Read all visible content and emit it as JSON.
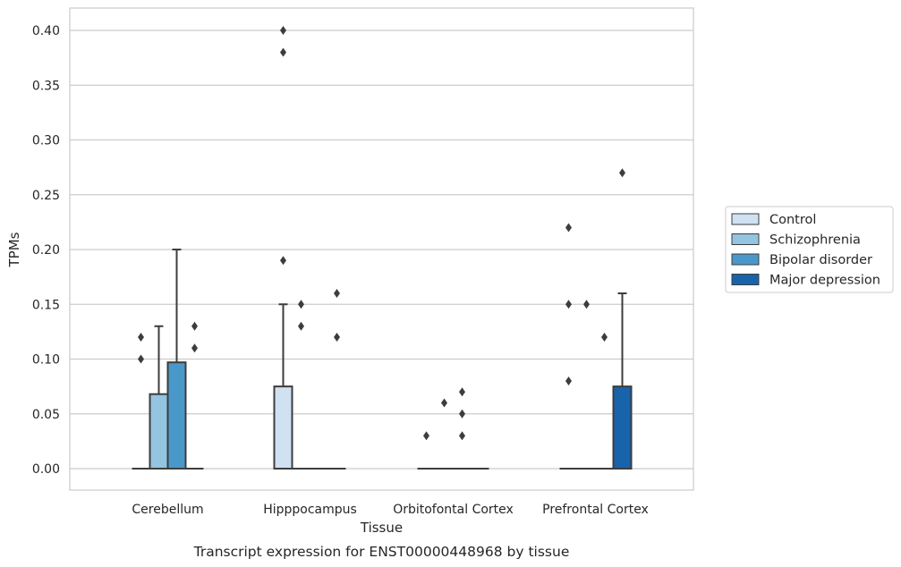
{
  "chart_data": {
    "type": "box",
    "title": "",
    "caption": "Transcript expression for ENST00000448968 by tissue",
    "xlabel": "Tissue",
    "ylabel": "TPMs",
    "ylim": [
      -0.02,
      0.42
    ],
    "yticks": [
      "0.00",
      "0.05",
      "0.10",
      "0.15",
      "0.20",
      "0.25",
      "0.30",
      "0.35",
      "0.40"
    ],
    "grid": true,
    "legend_position": "outside-right",
    "categories": [
      "Cerebellum",
      "Hipppocampus",
      "Orbitofontal Cortex",
      "Prefrontal Cortex"
    ],
    "series": [
      {
        "name": "Control",
        "color": "#d0e1f2",
        "boxes": [
          {
            "q1": 0,
            "median": 0,
            "q3": 0,
            "whisker_low": 0,
            "whisker_high": 0,
            "outliers": [
              0.1,
              0.12
            ]
          },
          {
            "q1": 0,
            "median": 0,
            "q3": 0.075,
            "whisker_low": 0,
            "whisker_high": 0.15,
            "outliers": [
              0.19,
              0.38,
              0.4
            ]
          },
          {
            "q1": 0,
            "median": 0,
            "q3": 0,
            "whisker_low": 0,
            "whisker_high": 0,
            "outliers": [
              0.03
            ]
          },
          {
            "q1": 0,
            "median": 0,
            "q3": 0,
            "whisker_low": 0,
            "whisker_high": 0,
            "outliers": [
              0.08,
              0.15,
              0.22
            ]
          }
        ]
      },
      {
        "name": "Schizophrenia",
        "color": "#94c4df",
        "boxes": [
          {
            "q1": 0,
            "median": 0,
            "q3": 0.068,
            "whisker_low": 0,
            "whisker_high": 0.13,
            "outliers": []
          },
          {
            "q1": 0,
            "median": 0,
            "q3": 0,
            "whisker_low": 0,
            "whisker_high": 0,
            "outliers": [
              0.13,
              0.15
            ]
          },
          {
            "q1": 0,
            "median": 0,
            "q3": 0,
            "whisker_low": 0,
            "whisker_high": 0,
            "outliers": [
              0.06
            ]
          },
          {
            "q1": 0,
            "median": 0,
            "q3": 0,
            "whisker_low": 0,
            "whisker_high": 0,
            "outliers": [
              0.15
            ]
          }
        ]
      },
      {
        "name": "Bipolar disorder",
        "color": "#4a98c9",
        "boxes": [
          {
            "q1": 0,
            "median": 0,
            "q3": 0.097,
            "whisker_low": 0,
            "whisker_high": 0.2,
            "outliers": []
          },
          {
            "q1": 0,
            "median": 0,
            "q3": 0,
            "whisker_low": 0,
            "whisker_high": 0,
            "outliers": []
          },
          {
            "q1": 0,
            "median": 0,
            "q3": 0,
            "whisker_low": 0,
            "whisker_high": 0,
            "outliers": [
              0.03,
              0.05,
              0.07
            ]
          },
          {
            "q1": 0,
            "median": 0,
            "q3": 0,
            "whisker_low": 0,
            "whisker_high": 0,
            "outliers": [
              0.12
            ]
          }
        ]
      },
      {
        "name": "Major depression",
        "color": "#1764ab",
        "boxes": [
          {
            "q1": 0,
            "median": 0,
            "q3": 0,
            "whisker_low": 0,
            "whisker_high": 0,
            "outliers": [
              0.11,
              0.13
            ]
          },
          {
            "q1": 0,
            "median": 0,
            "q3": 0,
            "whisker_low": 0,
            "whisker_high": 0,
            "outliers": [
              0.12,
              0.16
            ]
          },
          {
            "q1": 0,
            "median": 0,
            "q3": 0,
            "whisker_low": 0,
            "whisker_high": 0,
            "outliers": []
          },
          {
            "q1": 0,
            "median": 0,
            "q3": 0.075,
            "whisker_low": 0,
            "whisker_high": 0.16,
            "outliers": [
              0.27
            ]
          }
        ]
      }
    ]
  },
  "colors": {
    "grid": "#cccccc",
    "frame": "#cccccc",
    "box_edge": "#3d3d3d",
    "marker": "#3d3d3d"
  }
}
